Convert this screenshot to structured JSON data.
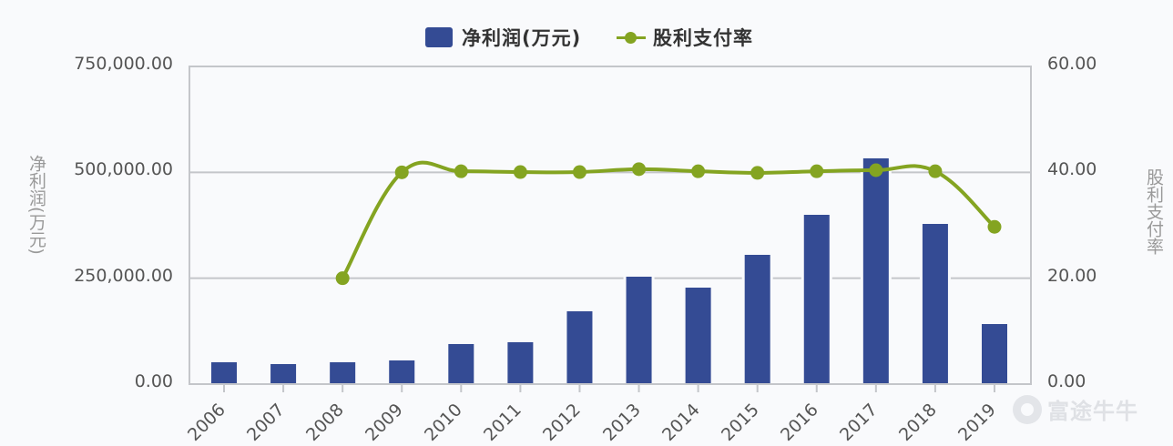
{
  "legend": {
    "bar_label": "净利润(万元)",
    "line_label": "股利支付率"
  },
  "colors": {
    "bar": "#344b94",
    "line": "#84a421",
    "grid": "#c4c6ca",
    "axis_text": "#555555",
    "axis_title": "#999999",
    "background": "#f9fafc"
  },
  "axes": {
    "left_title": "净利润(万元)",
    "right_title": "股利支付率",
    "left_ticks": [
      "750,000.00",
      "500,000.00",
      "250,000.00",
      "0.00"
    ],
    "right_ticks": [
      "60.00",
      "40.00",
      "20.00",
      "0.00"
    ]
  },
  "watermark": {
    "text": "富途牛牛",
    "icon": "futu-logo-icon"
  },
  "chart_data": {
    "type": "bar",
    "title": "",
    "categories": [
      "2006",
      "2007",
      "2008",
      "2009",
      "2010",
      "2011",
      "2012",
      "2013",
      "2014",
      "2015",
      "2016",
      "2017",
      "2018",
      "2019"
    ],
    "series": [
      {
        "name": "净利润(万元)",
        "type": "bar",
        "axis": "left",
        "values": [
          51600,
          47300,
          51600,
          55900,
          94600,
          98900,
          171900,
          253600,
          227800,
          305200,
          399700,
          533000,
          378200,
          141800
        ]
      },
      {
        "name": "股利支付率",
        "type": "line",
        "axis": "right",
        "values": [
          null,
          null,
          20.0,
          40.0,
          40.2,
          40.05,
          40.05,
          40.6,
          40.2,
          39.9,
          40.2,
          40.4,
          40.2,
          29.7
        ]
      }
    ],
    "xlabel": "",
    "ylabel": "净利润(万元)",
    "y2label": "股利支付率",
    "ylim": [
      0,
      750000
    ],
    "y2lim": [
      0,
      60
    ],
    "grid": true,
    "legend_position": "top"
  }
}
